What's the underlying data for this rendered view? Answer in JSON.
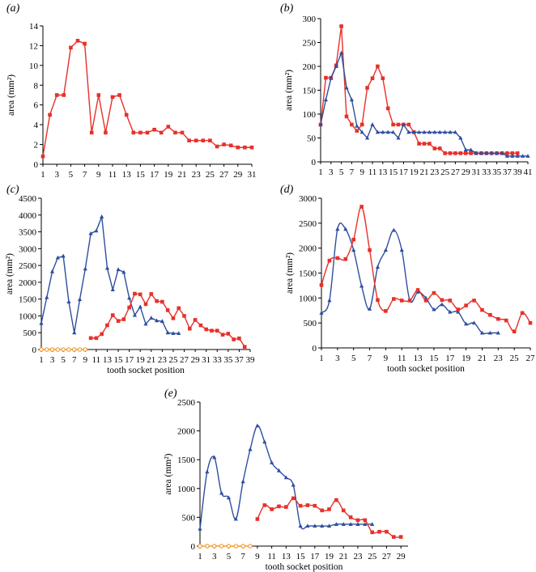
{
  "figure": {
    "panel_label_style": "italic-parenthesized"
  },
  "chart_data": [
    {
      "label": "(a)",
      "type": "line",
      "ylabel": "area (mm²)",
      "xlabel": "",
      "xlim": [
        1,
        31
      ],
      "ylim": [
        0,
        14
      ],
      "xticks": [
        1,
        3,
        5,
        7,
        9,
        11,
        13,
        15,
        17,
        19,
        21,
        23,
        25,
        27,
        29,
        31
      ],
      "yticks": [
        0,
        2,
        4,
        6,
        8,
        10,
        12,
        14
      ],
      "grid": false,
      "series": [
        {
          "color": "#e8302a",
          "marker": "square",
          "x": [
            1,
            2,
            3,
            4,
            5,
            6,
            7,
            8,
            9,
            10,
            11,
            12,
            13,
            14,
            15,
            16,
            17,
            18,
            19,
            20,
            21,
            22,
            23,
            24,
            25,
            26,
            27,
            28,
            29,
            30,
            31
          ],
          "y": [
            0.8,
            5.0,
            7.0,
            7.0,
            11.8,
            12.5,
            12.2,
            3.2,
            7.0,
            3.2,
            6.8,
            7.0,
            5.0,
            3.2,
            3.2,
            3.2,
            3.5,
            3.2,
            3.8,
            3.2,
            3.2,
            2.4,
            2.4,
            2.4,
            2.4,
            1.8,
            2.0,
            1.9,
            1.7,
            1.7,
            1.7
          ]
        }
      ]
    },
    {
      "label": "(b)",
      "type": "line",
      "ylabel": "area (mm²)",
      "xlabel": "",
      "xlim": [
        1,
        41
      ],
      "ylim": [
        0,
        300
      ],
      "xticks": [
        1,
        3,
        5,
        7,
        9,
        11,
        13,
        15,
        17,
        19,
        21,
        23,
        25,
        27,
        29,
        31,
        33,
        35,
        37,
        39,
        41
      ],
      "yticks": [
        0,
        50,
        100,
        150,
        200,
        250,
        300
      ],
      "grid": false,
      "series": [
        {
          "color": "#e8302a",
          "marker": "square",
          "x": [
            1,
            2,
            3,
            4,
            5,
            6,
            7,
            8,
            9,
            10,
            11,
            12,
            13,
            14,
            15,
            16,
            17,
            18,
            19,
            20,
            21,
            22,
            23,
            24,
            25,
            26,
            27,
            28,
            29,
            30,
            31,
            32,
            33,
            34,
            35,
            36,
            37,
            38,
            39
          ],
          "y": [
            78,
            176,
            176,
            202,
            284,
            95,
            78,
            65,
            78,
            155,
            175,
            200,
            175,
            112,
            78,
            78,
            78,
            78,
            62,
            38,
            38,
            38,
            28,
            28,
            18,
            18,
            18,
            18,
            18,
            18,
            18,
            18,
            18,
            18,
            18,
            18,
            18,
            18,
            18
          ]
        },
        {
          "color": "#2e4e9e",
          "marker": "triangle",
          "x": [
            1,
            2,
            3,
            4,
            5,
            6,
            7,
            8,
            9,
            10,
            11,
            12,
            13,
            14,
            15,
            16,
            17,
            18,
            19,
            20,
            21,
            22,
            23,
            24,
            25,
            26,
            27,
            28,
            29,
            30,
            31,
            32,
            33,
            34,
            35,
            36,
            37,
            38,
            39,
            40,
            41
          ],
          "y": [
            78,
            130,
            175,
            200,
            228,
            155,
            130,
            75,
            62,
            50,
            78,
            62,
            62,
            62,
            62,
            50,
            78,
            62,
            62,
            62,
            62,
            62,
            62,
            62,
            62,
            62,
            62,
            50,
            25,
            25,
            18,
            18,
            18,
            18,
            18,
            18,
            12,
            12,
            12,
            12,
            12
          ]
        }
      ]
    },
    {
      "label": "(c)",
      "type": "line",
      "ylabel": "area (mm²)",
      "xlabel": "tooth  socket position",
      "xlim": [
        1,
        39
      ],
      "ylim": [
        0,
        4500
      ],
      "xticks": [
        1,
        3,
        5,
        7,
        9,
        11,
        13,
        15,
        17,
        19,
        21,
        23,
        25,
        27,
        29,
        31,
        33,
        35,
        37,
        39
      ],
      "yticks": [
        0,
        500,
        1000,
        1500,
        2000,
        2500,
        3000,
        3500,
        4000,
        4500
      ],
      "grid": false,
      "series": [
        {
          "color": "#2e4e9e",
          "marker": "triangle",
          "x": [
            1,
            2,
            3,
            4,
            5,
            6,
            7,
            8,
            9,
            10,
            11,
            12,
            13,
            14,
            15,
            16,
            17,
            18,
            19,
            20,
            21,
            22,
            23,
            24,
            25,
            26
          ],
          "y": [
            780,
            1550,
            2320,
            2730,
            2780,
            1420,
            500,
            1490,
            2400,
            3450,
            3530,
            3950,
            2420,
            1780,
            2380,
            2300,
            1530,
            1020,
            1270,
            760,
            940,
            860,
            840,
            500,
            480,
            480
          ]
        },
        {
          "color": "#e8302a",
          "marker": "square",
          "x": [
            10,
            11,
            12,
            13,
            14,
            15,
            16,
            17,
            18,
            19,
            20,
            21,
            22,
            23,
            24,
            25,
            26,
            27,
            28,
            29,
            30,
            31,
            32,
            33,
            34,
            35,
            36,
            37,
            38
          ],
          "y": [
            340,
            340,
            460,
            720,
            1020,
            850,
            900,
            1250,
            1660,
            1640,
            1350,
            1650,
            1440,
            1420,
            1170,
            930,
            1230,
            1000,
            620,
            880,
            720,
            600,
            560,
            560,
            440,
            470,
            300,
            330,
            80
          ]
        },
        {
          "color": "#f09a2a",
          "marker": "circle",
          "x": [
            1,
            2,
            3,
            4,
            5,
            6,
            7,
            8,
            9
          ],
          "y": [
            0,
            0,
            0,
            0,
            0,
            0,
            0,
            0,
            0
          ]
        }
      ]
    },
    {
      "label": "(d)",
      "type": "line",
      "ylabel": "area (mm²)",
      "xlabel": "tooth  socket position",
      "xlim": [
        1,
        27
      ],
      "ylim": [
        0,
        3000
      ],
      "xticks": [
        1,
        3,
        5,
        7,
        9,
        11,
        13,
        15,
        17,
        19,
        21,
        23,
        25,
        27
      ],
      "yticks": [
        0,
        500,
        1000,
        1500,
        2000,
        2500,
        3000
      ],
      "grid": false,
      "series": [
        {
          "color": "#2e4e9e",
          "marker": "triangle",
          "smooth": true,
          "x": [
            1,
            2,
            3,
            4,
            5,
            6,
            7,
            8,
            9,
            10,
            11,
            12,
            13,
            14,
            15,
            16,
            17,
            18,
            19,
            20,
            21,
            22,
            23
          ],
          "y": [
            700,
            950,
            2380,
            2380,
            1960,
            1240,
            780,
            1620,
            1960,
            2360,
            1960,
            950,
            1120,
            1000,
            770,
            870,
            720,
            720,
            480,
            500,
            300,
            300,
            300
          ]
        },
        {
          "color": "#e8302a",
          "marker": "square",
          "smooth": true,
          "x": [
            1,
            2,
            3,
            4,
            5,
            6,
            7,
            8,
            9,
            10,
            11,
            12,
            13,
            14,
            15,
            16,
            17,
            18,
            19,
            20,
            21,
            22,
            23,
            24,
            25,
            26,
            27
          ],
          "y": [
            1260,
            1750,
            1800,
            1780,
            2170,
            2830,
            1960,
            960,
            740,
            980,
            950,
            950,
            1160,
            950,
            1100,
            960,
            950,
            770,
            850,
            950,
            760,
            660,
            580,
            550,
            330,
            700,
            500
          ]
        }
      ]
    },
    {
      "label": "(e)",
      "type": "line",
      "ylabel": "area (mm²)",
      "xlabel": "tooth  socket position",
      "xlim": [
        1,
        30
      ],
      "ylim": [
        0,
        2500
      ],
      "xticks": [
        1,
        3,
        5,
        7,
        9,
        11,
        13,
        15,
        17,
        19,
        21,
        23,
        25,
        27,
        29
      ],
      "yticks": [
        0,
        500,
        1000,
        1500,
        2000,
        2500
      ],
      "grid": false,
      "series": [
        {
          "color": "#2e4e9e",
          "marker": "triangle",
          "smooth": true,
          "x": [
            1,
            2,
            3,
            4,
            5,
            6,
            7,
            8,
            9,
            10,
            11,
            12,
            13,
            14,
            15,
            16,
            17,
            18,
            19,
            20,
            21,
            22,
            23,
            24,
            25
          ],
          "y": [
            300,
            1290,
            1540,
            920,
            840,
            470,
            1120,
            1680,
            2090,
            1810,
            1450,
            1310,
            1190,
            1060,
            350,
            350,
            350,
            350,
            350,
            380,
            380,
            380,
            380,
            380,
            380
          ]
        },
        {
          "color": "#e8302a",
          "marker": "square",
          "smooth": true,
          "x": [
            9,
            10,
            11,
            12,
            13,
            14,
            15,
            16,
            17,
            18,
            19,
            20,
            21,
            22,
            23,
            24,
            25,
            26,
            27,
            28,
            29
          ],
          "y": [
            470,
            710,
            640,
            690,
            680,
            830,
            700,
            710,
            700,
            620,
            640,
            800,
            620,
            500,
            450,
            450,
            240,
            250,
            250,
            160,
            160
          ]
        },
        {
          "color": "#f09a2a",
          "marker": "circle",
          "x": [
            1,
            2,
            3,
            4,
            5,
            6,
            7,
            8
          ],
          "y": [
            0,
            0,
            0,
            0,
            0,
            0,
            0,
            0
          ]
        }
      ]
    }
  ]
}
